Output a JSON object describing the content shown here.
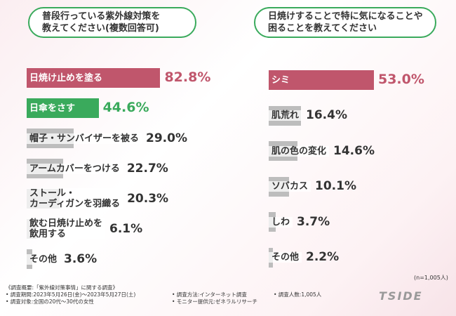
{
  "chart_data": [
    {
      "type": "bar",
      "title": "普段行っている紫外線対策を\n教えてください(複数回答可)",
      "categories": [
        "日焼け止めを塗る",
        "日傘をさす",
        "帽子・サンバイザーを被る",
        "アームカバーをつける",
        "ストール・\nカーディガンを羽織る",
        "飲む日焼け止めを\n飲用する",
        "その他"
      ],
      "values": [
        82.8,
        44.6,
        29.0,
        22.7,
        20.3,
        6.1,
        3.6
      ],
      "value_labels": [
        "82.8%",
        "44.6%",
        "29.0%",
        "22.7%",
        "20.3%",
        "6.1%",
        "3.6%"
      ],
      "colors": [
        "#c0566c",
        "#3aaa5c",
        "#bdbdbd",
        "#bdbdbd",
        "#bdbdbd",
        "#bdbdbd",
        "#bdbdbd"
      ]
    },
    {
      "type": "bar",
      "title": "日焼けすることで特に気になることや\n困ることを教えてください",
      "categories": [
        "シミ",
        "肌荒れ",
        "肌の色の変化",
        "ソバカス",
        "しわ",
        "その他"
      ],
      "values": [
        53.0,
        16.4,
        14.6,
        10.1,
        3.7,
        2.2
      ],
      "value_labels": [
        "53.0%",
        "16.4%",
        "14.6%",
        "10.1%",
        "3.7%",
        "2.2%"
      ],
      "colors": [
        "#c0566c",
        "#bdbdbd",
        "#bdbdbd",
        "#bdbdbd",
        "#bdbdbd",
        "#bdbdbd"
      ]
    }
  ],
  "note": "(n=1,005人)",
  "footer": {
    "lines": [
      "《調査概要:「紫外線対策事情」に関する調査》",
      "• 調査期間:2023年5月26日(金)〜2023年5月27日(土)",
      "• 調査対象:全国の20代〜30代の女性",
      "• 調査方法:インターネット調査",
      "• モニター提供元:ゼネラルリサーチ",
      "• 調査人数:1,005人"
    ]
  },
  "logo": "TSIDE"
}
